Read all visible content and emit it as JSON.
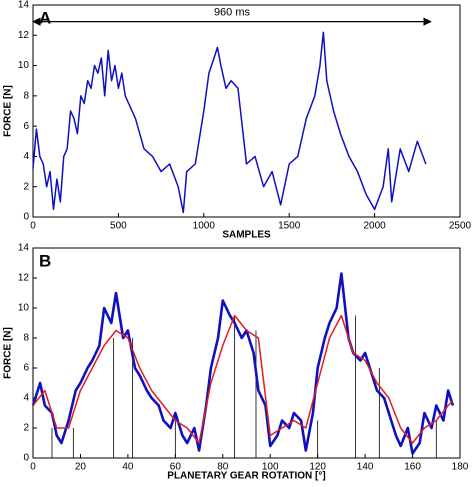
{
  "chart_data": [
    {
      "type": "line",
      "panel_label": "A",
      "xlabel": "SAMPLES",
      "ylabel": "FORCE [N]",
      "xlim": [
        0,
        2500
      ],
      "xticks": [
        0,
        500,
        1000,
        1500,
        2000,
        2500
      ],
      "ylim": [
        0,
        14
      ],
      "yticks": [
        0,
        2,
        4,
        6,
        8,
        10,
        12,
        14
      ],
      "annotation": {
        "text": "960 ms",
        "x": [
          0,
          2330
        ],
        "y": 12.9
      },
      "series": [
        {
          "color": "#1010c0",
          "x": [
            0,
            20,
            40,
            60,
            80,
            100,
            120,
            140,
            160,
            180,
            200,
            220,
            240,
            260,
            280,
            300,
            320,
            340,
            360,
            380,
            400,
            420,
            440,
            460,
            480,
            500,
            520,
            540,
            560,
            600,
            650,
            700,
            750,
            800,
            850,
            880,
            900,
            950,
            1000,
            1030,
            1060,
            1080,
            1100,
            1130,
            1160,
            1200,
            1250,
            1300,
            1350,
            1400,
            1450,
            1500,
            1550,
            1600,
            1650,
            1680,
            1700,
            1720,
            1740,
            1760,
            1800,
            1850,
            1900,
            1950,
            2000,
            2050,
            2080,
            2100,
            2150,
            2200,
            2250,
            2300
          ],
          "values": [
            3.2,
            5.8,
            4.0,
            3.5,
            2.0,
            3.0,
            0.5,
            2.5,
            1.0,
            4.0,
            4.5,
            7.0,
            6.5,
            5.5,
            8.0,
            7.5,
            9.0,
            8.5,
            10.0,
            9.5,
            10.5,
            8.0,
            11.0,
            9.0,
            10.0,
            8.5,
            9.5,
            8.0,
            7.5,
            6.5,
            4.5,
            4.0,
            3.0,
            3.5,
            2.0,
            0.3,
            3.0,
            3.5,
            7.0,
            9.5,
            10.5,
            11.2,
            10.0,
            8.5,
            9.0,
            8.5,
            3.5,
            4.0,
            2.0,
            3.0,
            0.8,
            3.5,
            4.0,
            6.5,
            8.0,
            10.0,
            12.2,
            9.0,
            8.0,
            7.0,
            5.5,
            4.0,
            3.0,
            1.5,
            0.5,
            2.0,
            4.5,
            1.0,
            4.5,
            3.0,
            5.0,
            3.5
          ]
        }
      ]
    },
    {
      "type": "line",
      "panel_label": "B",
      "xlabel": "PLANETARY GEAR ROTATION [°]",
      "ylabel": "FORCE [N]",
      "xlim": [
        0,
        180
      ],
      "xticks": [
        0,
        20,
        40,
        60,
        80,
        100,
        120,
        140,
        160,
        180
      ],
      "ylim": [
        0,
        14
      ],
      "yticks": [
        0,
        2,
        4,
        6,
        8,
        10,
        12,
        14
      ],
      "series": [
        {
          "color": "#1010c0",
          "x": [
            0,
            3,
            5,
            8,
            10,
            12,
            15,
            18,
            20,
            23,
            25,
            28,
            30,
            33,
            35,
            38,
            40,
            43,
            45,
            48,
            50,
            53,
            55,
            58,
            60,
            63,
            65,
            68,
            70,
            73,
            75,
            78,
            80,
            83,
            85,
            88,
            90,
            93,
            95,
            98,
            100,
            103,
            105,
            108,
            110,
            113,
            115,
            118,
            120,
            123,
            125,
            128,
            130,
            133,
            135,
            138,
            140,
            143,
            145,
            148,
            150,
            153,
            155,
            158,
            160,
            163,
            165,
            168,
            170,
            173,
            175,
            177
          ],
          "values": [
            3.5,
            5.0,
            3.5,
            3.0,
            1.5,
            1.0,
            2.5,
            4.5,
            5.0,
            6.0,
            6.5,
            7.5,
            10.0,
            9.0,
            11.0,
            8.0,
            8.5,
            6.0,
            5.5,
            4.5,
            4.0,
            3.5,
            2.5,
            2.0,
            3.0,
            1.5,
            1.0,
            2.0,
            0.5,
            3.5,
            6.0,
            8.0,
            10.5,
            9.5,
            9.0,
            8.0,
            8.5,
            7.0,
            4.5,
            3.5,
            0.8,
            1.5,
            2.5,
            2.0,
            3.0,
            2.5,
            0.5,
            3.0,
            6.0,
            8.0,
            9.0,
            10.0,
            12.3,
            8.0,
            7.0,
            6.5,
            7.0,
            5.5,
            4.5,
            4.0,
            3.0,
            1.5,
            0.8,
            2.0,
            0.3,
            1.0,
            3.0,
            2.0,
            3.5,
            2.5,
            4.5,
            3.5
          ]
        },
        {
          "color": "#e02020",
          "x": [
            0,
            5,
            10,
            15,
            20,
            25,
            30,
            35,
            40,
            45,
            50,
            55,
            60,
            65,
            70,
            75,
            80,
            85,
            90,
            95,
            100,
            105,
            110,
            115,
            120,
            125,
            130,
            135,
            140,
            145,
            150,
            155,
            160,
            165,
            170,
            175,
            177
          ],
          "values": [
            3.5,
            4.5,
            2.0,
            2.0,
            4.5,
            6.0,
            7.5,
            8.5,
            8.0,
            6.0,
            4.5,
            3.5,
            2.5,
            2.0,
            1.0,
            5.0,
            7.5,
            9.5,
            8.5,
            8.0,
            1.5,
            2.0,
            2.5,
            2.0,
            5.0,
            8.0,
            9.5,
            7.0,
            6.5,
            5.0,
            4.0,
            2.0,
            1.0,
            2.0,
            2.5,
            3.5,
            3.8
          ]
        }
      ],
      "dividers": {
        "color": "#000000",
        "x": [
          8,
          17,
          34,
          42,
          60,
          85,
          94,
          120,
          136,
          146,
          170
        ],
        "values": [
          2,
          2,
          8,
          8,
          3,
          9.5,
          8.5,
          2.5,
          9.5,
          6,
          2.5
        ]
      }
    }
  ]
}
